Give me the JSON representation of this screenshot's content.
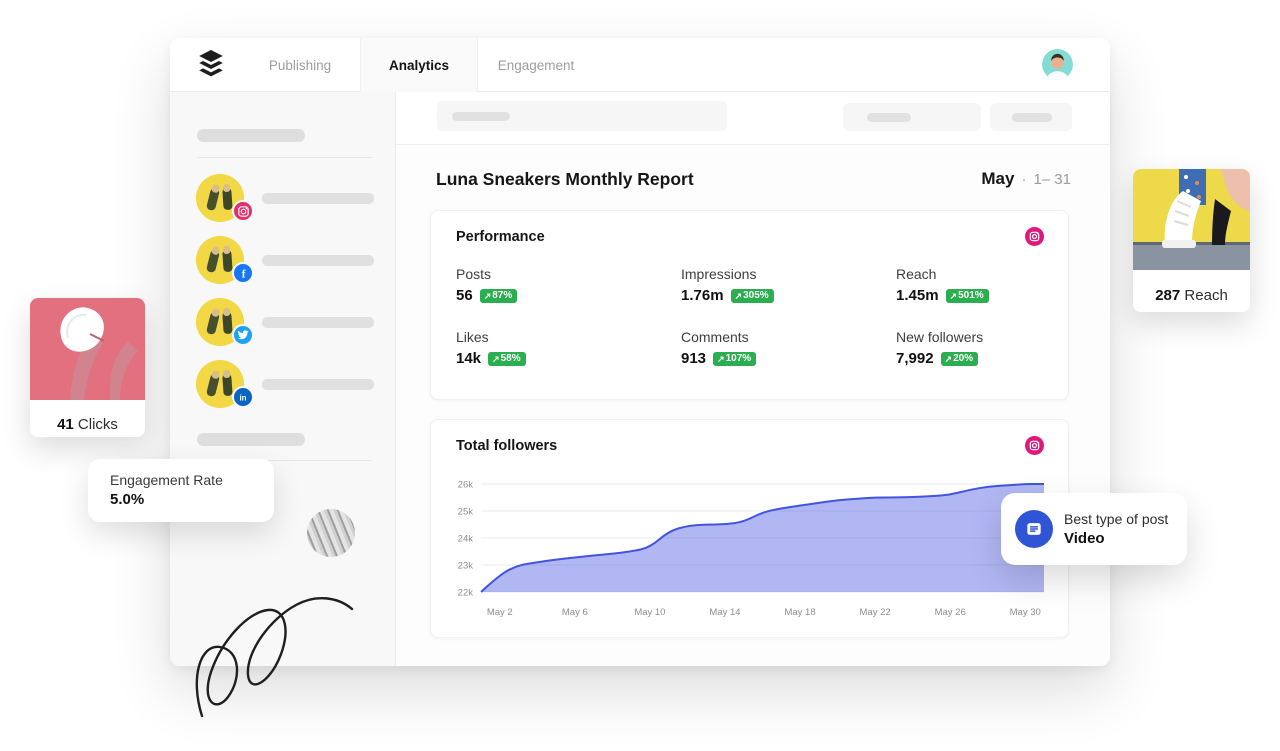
{
  "nav": {
    "tabs": [
      {
        "label": "Publishing",
        "active": false
      },
      {
        "label": "Analytics",
        "active": true
      },
      {
        "label": "Engagement",
        "active": false
      }
    ]
  },
  "sidebar": {
    "channels": [
      {
        "network": "Instagram"
      },
      {
        "network": "Facebook"
      },
      {
        "network": "Twitter"
      },
      {
        "network": "LinkedIn"
      }
    ]
  },
  "report": {
    "title": "Luna Sneakers Monthly Report",
    "month": "May",
    "dot": "·",
    "range": "1– 31"
  },
  "performance": {
    "title": "Performance",
    "arrow": "↗",
    "metrics": [
      {
        "label": "Posts",
        "value": "56",
        "change": "87%"
      },
      {
        "label": "Impressions",
        "value": "1.76m",
        "change": "305%"
      },
      {
        "label": "Reach",
        "value": "1.45m",
        "change": "501%"
      },
      {
        "label": "Likes",
        "value": "14k",
        "change": "58%"
      },
      {
        "label": "Comments",
        "value": "913",
        "change": "107%"
      },
      {
        "label": "New followers",
        "value": "7,992",
        "change": "20%"
      }
    ]
  },
  "followers_card": {
    "title": "Total followers"
  },
  "chart_data": {
    "type": "area",
    "title": "Total followers",
    "xlabel": "",
    "ylabel": "",
    "ylim": [
      22000,
      26000
    ],
    "grid": true,
    "legend": false,
    "line_color": "#4254e0",
    "fill_color": "#4254e0",
    "fill_opacity": 0.42,
    "y_ticks": [
      {
        "label": "26k",
        "value": 26000
      },
      {
        "label": "25k",
        "value": 25000
      },
      {
        "label": "24k",
        "value": 24000
      },
      {
        "label": "23k",
        "value": 23000
      },
      {
        "label": "22k",
        "value": 22000
      }
    ],
    "x_tick_days": [
      2,
      6,
      10,
      14,
      18,
      22,
      26,
      30
    ],
    "x_tick_labels": [
      "May 2",
      "May 6",
      "May 10",
      "May 14",
      "May 18",
      "May 22",
      "May 26",
      "May 30"
    ],
    "series": [
      {
        "name": "Total followers",
        "x_days": [
          1,
          2,
          3,
          4,
          5,
          6,
          7,
          8,
          9,
          10,
          11,
          12,
          13,
          14,
          15,
          16,
          17,
          18,
          19,
          20,
          21,
          22,
          23,
          24,
          25,
          26,
          27,
          28,
          29,
          30,
          31
        ],
        "values": [
          22000,
          22650,
          23000,
          23100,
          23200,
          23280,
          23350,
          23420,
          23500,
          23650,
          24250,
          24450,
          24500,
          24500,
          24600,
          24950,
          25100,
          25200,
          25300,
          25400,
          25450,
          25500,
          25500,
          25520,
          25550,
          25600,
          25780,
          25900,
          25950,
          26000,
          26000
        ]
      }
    ]
  },
  "floating": {
    "clicks": {
      "value": "41",
      "label": "Clicks"
    },
    "engagement": {
      "label": "Engagement Rate",
      "value": "5.0%"
    },
    "reach": {
      "value": "287",
      "label": "Reach"
    },
    "best_post": {
      "label": "Best type of post",
      "value": "Video"
    }
  },
  "colors": {
    "badge_green": "#2aae4f",
    "instagram_pink": "#e0187c",
    "facebook_blue": "#1877f2",
    "twitter_blue": "#1da1f2",
    "linkedin_blue": "#0a66c2",
    "chart_line": "#4254e0",
    "chart_fill": "#aab3f0",
    "tooltip_icon_blue": "#2f54d6"
  }
}
